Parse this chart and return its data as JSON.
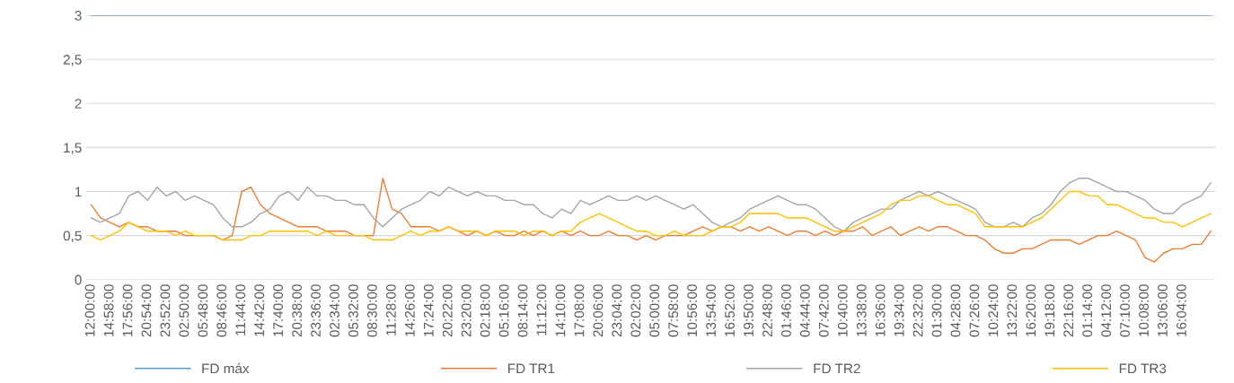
{
  "chart_data": {
    "type": "line",
    "categories": [
      "12:00:00",
      null,
      "14:58:00",
      null,
      "17:56:00",
      null,
      "20:54:00",
      null,
      "23:52:00",
      null,
      "02:50:00",
      null,
      "05:48:00",
      null,
      "08:46:00",
      null,
      "11:44:00",
      null,
      "14:42:00",
      null,
      "17:40:00",
      null,
      "20:38:00",
      null,
      "23:36:00",
      null,
      "02:34:00",
      null,
      "05:32:00",
      null,
      "08:30:00",
      null,
      "11:28:00",
      null,
      "14:26:00",
      null,
      "17:24:00",
      null,
      "20:22:00",
      null,
      "23:20:00",
      null,
      "02:18:00",
      null,
      "05:16:00",
      null,
      "08:14:00",
      null,
      "11:12:00",
      null,
      "14:10:00",
      null,
      "17:08:00",
      null,
      "20:06:00",
      null,
      "23:04:00",
      null,
      "02:02:00",
      null,
      "05:00:00",
      null,
      "07:58:00",
      null,
      "10:56:00",
      null,
      "13:54:00",
      null,
      "16:52:00",
      null,
      "19:50:00",
      null,
      "22:48:00",
      null,
      "01:46:00",
      null,
      "04:44:00",
      null,
      "07:42:00",
      null,
      "10:40:00",
      null,
      "13:38:00",
      null,
      "16:36:00",
      null,
      "19:34:00",
      null,
      "22:32:00",
      null,
      "01:30:00",
      null,
      "04:28:00",
      null,
      "07:26:00",
      null,
      "10:24:00",
      null,
      "13:22:00",
      null,
      "16:20:00",
      null,
      "19:18:00",
      null,
      "22:16:00",
      null,
      "01:14:00",
      null,
      "04:12:00",
      null,
      "07:10:00",
      null,
      "10:08:00",
      null,
      "13:06:00",
      null,
      "16:04:00",
      null,
      null,
      null
    ],
    "series": [
      {
        "name": "FD máx",
        "color": "#5b9bd5",
        "values": [
          3,
          3,
          3,
          3,
          3,
          3,
          3,
          3,
          3,
          3,
          3,
          3,
          3,
          3,
          3,
          3,
          3,
          3,
          3,
          3,
          3,
          3,
          3,
          3,
          3,
          3,
          3,
          3,
          3,
          3,
          3,
          3,
          3,
          3,
          3,
          3,
          3,
          3,
          3,
          3,
          3,
          3,
          3,
          3,
          3,
          3,
          3,
          3,
          3,
          3,
          3,
          3,
          3,
          3,
          3,
          3,
          3,
          3,
          3,
          3,
          3,
          3,
          3,
          3,
          3,
          3,
          3,
          3,
          3,
          3,
          3,
          3,
          3,
          3,
          3,
          3,
          3,
          3,
          3,
          3,
          3,
          3,
          3,
          3,
          3,
          3,
          3,
          3,
          3,
          3,
          3,
          3,
          3,
          3,
          3,
          3,
          3,
          3,
          3,
          3,
          3,
          3,
          3,
          3,
          3,
          3,
          3,
          3,
          3,
          3,
          3,
          3,
          3,
          3,
          3,
          3,
          3,
          3,
          3,
          3
        ]
      },
      {
        "name": "FD TR1",
        "color": "#ed7d31",
        "values": [
          0.85,
          0.7,
          0.65,
          0.6,
          0.65,
          0.6,
          0.6,
          0.55,
          0.55,
          0.55,
          0.5,
          0.5,
          0.5,
          0.5,
          0.45,
          0.5,
          1.0,
          1.05,
          0.85,
          0.75,
          0.7,
          0.65,
          0.6,
          0.6,
          0.6,
          0.55,
          0.55,
          0.55,
          0.5,
          0.5,
          0.5,
          1.15,
          0.8,
          0.75,
          0.6,
          0.6,
          0.6,
          0.55,
          0.6,
          0.55,
          0.5,
          0.55,
          0.5,
          0.55,
          0.5,
          0.5,
          0.55,
          0.5,
          0.55,
          0.5,
          0.55,
          0.5,
          0.55,
          0.5,
          0.5,
          0.55,
          0.5,
          0.5,
          0.45,
          0.5,
          0.45,
          0.5,
          0.5,
          0.5,
          0.55,
          0.6,
          0.55,
          0.6,
          0.6,
          0.55,
          0.6,
          0.55,
          0.6,
          0.55,
          0.5,
          0.55,
          0.55,
          0.5,
          0.55,
          0.5,
          0.55,
          0.55,
          0.6,
          0.5,
          0.55,
          0.6,
          0.5,
          0.55,
          0.6,
          0.55,
          0.6,
          0.6,
          0.55,
          0.5,
          0.5,
          0.45,
          0.35,
          0.3,
          0.3,
          0.35,
          0.35,
          0.4,
          0.45,
          0.45,
          0.45,
          0.4,
          0.45,
          0.5,
          0.5,
          0.55,
          0.5,
          0.45,
          0.25,
          0.2,
          0.3,
          0.35,
          0.35,
          0.4,
          0.4,
          0.55
        ]
      },
      {
        "name": "FD TR2",
        "color": "#a5a5a5",
        "values": [
          0.7,
          0.65,
          0.7,
          0.75,
          0.95,
          1.0,
          0.9,
          1.05,
          0.95,
          1.0,
          0.9,
          0.95,
          0.9,
          0.85,
          0.7,
          0.6,
          0.6,
          0.65,
          0.75,
          0.8,
          0.95,
          1.0,
          0.9,
          1.05,
          0.95,
          0.95,
          0.9,
          0.9,
          0.85,
          0.85,
          0.7,
          0.6,
          0.7,
          0.8,
          0.85,
          0.9,
          1.0,
          0.95,
          1.05,
          1.0,
          0.95,
          1.0,
          0.95,
          0.95,
          0.9,
          0.9,
          0.85,
          0.85,
          0.75,
          0.7,
          0.8,
          0.75,
          0.9,
          0.85,
          0.9,
          0.95,
          0.9,
          0.9,
          0.95,
          0.9,
          0.95,
          0.9,
          0.85,
          0.8,
          0.85,
          0.75,
          0.65,
          0.6,
          0.65,
          0.7,
          0.8,
          0.85,
          0.9,
          0.95,
          0.9,
          0.85,
          0.85,
          0.8,
          0.7,
          0.6,
          0.55,
          0.65,
          0.7,
          0.75,
          0.8,
          0.8,
          0.9,
          0.95,
          1.0,
          0.95,
          1.0,
          0.95,
          0.9,
          0.85,
          0.8,
          0.65,
          0.6,
          0.6,
          0.65,
          0.6,
          0.7,
          0.75,
          0.85,
          1.0,
          1.1,
          1.15,
          1.15,
          1.1,
          1.05,
          1.0,
          1.0,
          0.95,
          0.9,
          0.8,
          0.75,
          0.75,
          0.85,
          0.9,
          0.95,
          1.1
        ]
      },
      {
        "name": "FD TR3",
        "color": "#ffc000",
        "values": [
          0.5,
          0.45,
          0.5,
          0.55,
          0.65,
          0.6,
          0.55,
          0.55,
          0.55,
          0.5,
          0.55,
          0.5,
          0.5,
          0.5,
          0.45,
          0.45,
          0.45,
          0.5,
          0.5,
          0.55,
          0.55,
          0.55,
          0.55,
          0.55,
          0.5,
          0.55,
          0.5,
          0.5,
          0.5,
          0.5,
          0.45,
          0.45,
          0.45,
          0.5,
          0.55,
          0.5,
          0.55,
          0.55,
          0.6,
          0.55,
          0.55,
          0.55,
          0.5,
          0.55,
          0.55,
          0.55,
          0.5,
          0.55,
          0.55,
          0.5,
          0.55,
          0.55,
          0.65,
          0.7,
          0.75,
          0.7,
          0.65,
          0.6,
          0.55,
          0.55,
          0.5,
          0.5,
          0.55,
          0.5,
          0.5,
          0.5,
          0.55,
          0.6,
          0.6,
          0.65,
          0.75,
          0.75,
          0.75,
          0.75,
          0.7,
          0.7,
          0.7,
          0.65,
          0.6,
          0.55,
          0.55,
          0.6,
          0.65,
          0.7,
          0.75,
          0.85,
          0.9,
          0.9,
          0.95,
          0.95,
          0.9,
          0.85,
          0.85,
          0.8,
          0.75,
          0.6,
          0.6,
          0.6,
          0.6,
          0.6,
          0.65,
          0.7,
          0.8,
          0.9,
          1.0,
          1.0,
          0.95,
          0.95,
          0.85,
          0.85,
          0.8,
          0.75,
          0.7,
          0.7,
          0.65,
          0.65,
          0.6,
          0.65,
          0.7,
          0.75
        ]
      }
    ],
    "ylim": [
      0,
      3
    ],
    "yticks": [
      {
        "value": 0,
        "label": "0"
      },
      {
        "value": 0.5,
        "label": "0,5"
      },
      {
        "value": 1,
        "label": "1"
      },
      {
        "value": 1.5,
        "label": "1,5"
      },
      {
        "value": 2,
        "label": "2"
      },
      {
        "value": 2.5,
        "label": "2,5"
      },
      {
        "value": 3,
        "label": "3"
      }
    ],
    "grid": "y",
    "legend": "bottom",
    "marker": "none",
    "line_style": "solid"
  }
}
